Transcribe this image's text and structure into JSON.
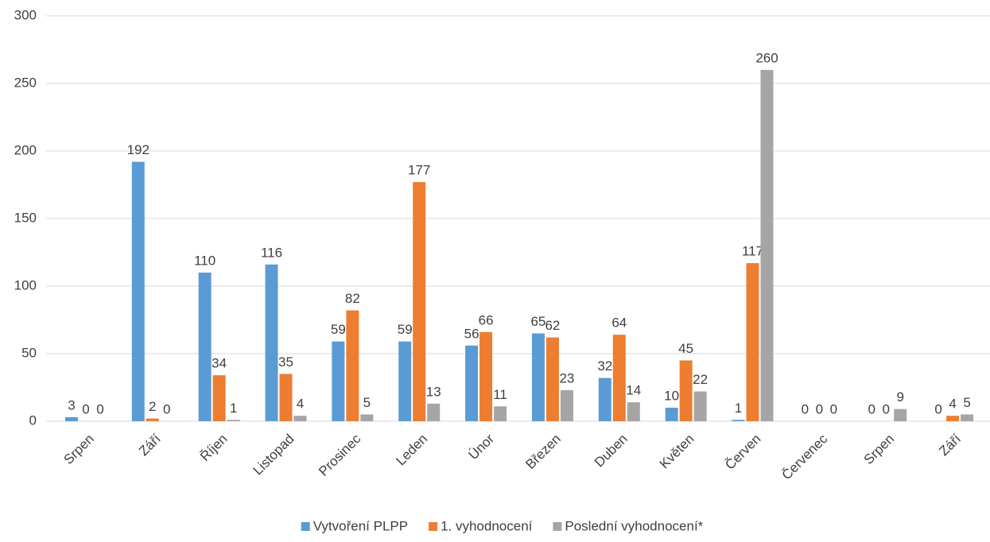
{
  "chart_data": {
    "type": "bar",
    "categories": [
      "Srpen",
      "Září",
      "Říjen",
      "Listopad",
      "Prosinec",
      "Leden",
      "Únor",
      "Březen",
      "Duben",
      "Květen",
      "Červen",
      "Červenec",
      "Srpen",
      "Září"
    ],
    "series": [
      {
        "name": "Vytvoření PLPP",
        "color": "#5b9bd5",
        "values": [
          3,
          192,
          110,
          116,
          59,
          59,
          56,
          65,
          32,
          10,
          1,
          0,
          0,
          0
        ]
      },
      {
        "name": "1. vyhodnocení",
        "color": "#ed7d31",
        "values": [
          0,
          2,
          34,
          35,
          82,
          177,
          66,
          62,
          64,
          45,
          117,
          0,
          0,
          4
        ]
      },
      {
        "name": "Poslední vyhodnocení*",
        "color": "#a5a5a5",
        "values": [
          0,
          0,
          1,
          4,
          5,
          13,
          11,
          23,
          14,
          22,
          260,
          0,
          9,
          5
        ]
      }
    ],
    "ylim": [
      0,
      300
    ],
    "yticks": [
      0,
      50,
      100,
      150,
      200,
      250,
      300
    ],
    "grid": true,
    "legend": "bottom"
  }
}
